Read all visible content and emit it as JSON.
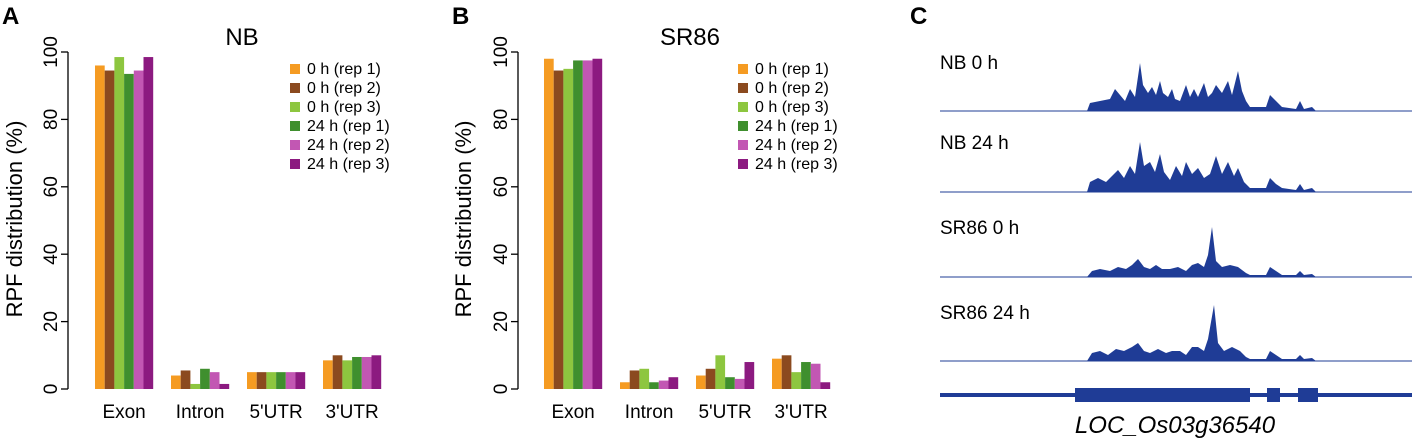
{
  "panels": [
    {
      "letter": "A"
    },
    {
      "letter": "B"
    },
    {
      "letter": "C"
    }
  ],
  "colors": {
    "0 h (rep 1)": "#F59B22",
    "0 h (rep 2)": "#8B4A1F",
    "0 h (rep 3)": "#8DC63F",
    "24 h (rep 1)": "#3F8F2E",
    "24 h (rep 2)": "#C257B3",
    "24 h (rep 3)": "#8C1A80",
    "track": "#1F3C96"
  },
  "chart_data": [
    {
      "type": "bar",
      "title": "NB",
      "ylabel": "RPF distribution (%)",
      "xlabel": "",
      "ylim": [
        0,
        100
      ],
      "yticks": [
        0,
        20,
        40,
        60,
        80,
        100
      ],
      "legend_position": "top-right",
      "categories": [
        "Exon",
        "Intron",
        "5'UTR",
        "3'UTR"
      ],
      "series": [
        {
          "name": "0 h (rep 1)",
          "values": [
            96,
            4,
            5,
            8.5
          ]
        },
        {
          "name": "0 h (rep 2)",
          "values": [
            94.5,
            5.5,
            5,
            10
          ]
        },
        {
          "name": "0 h (rep 3)",
          "values": [
            98.5,
            1.5,
            5,
            8.5
          ]
        },
        {
          "name": "24 h (rep 1)",
          "values": [
            93.5,
            6,
            5,
            9.5
          ]
        },
        {
          "name": "24 h (rep 2)",
          "values": [
            94.5,
            5,
            5,
            9.5
          ]
        },
        {
          "name": "24 h (rep 3)",
          "values": [
            98.5,
            1.5,
            5,
            10
          ]
        }
      ]
    },
    {
      "type": "bar",
      "title": "SR86",
      "ylabel": "RPF distribution (%)",
      "xlabel": "",
      "ylim": [
        0,
        100
      ],
      "yticks": [
        0,
        20,
        40,
        60,
        80,
        100
      ],
      "legend_position": "top-right",
      "categories": [
        "Exon",
        "Intron",
        "5'UTR",
        "3'UTR"
      ],
      "series": [
        {
          "name": "0 h (rep 1)",
          "values": [
            98,
            2,
            4,
            9
          ]
        },
        {
          "name": "0 h (rep 2)",
          "values": [
            94.5,
            5.5,
            6,
            10
          ]
        },
        {
          "name": "0 h (rep 3)",
          "values": [
            95,
            6,
            10,
            5
          ]
        },
        {
          "name": "24 h (rep 1)",
          "values": [
            97.5,
            2,
            3.5,
            8
          ]
        },
        {
          "name": "24 h (rep 2)",
          "values": [
            97.5,
            2.5,
            3,
            7.5
          ]
        },
        {
          "name": "24 h (rep 3)",
          "values": [
            98,
            3.5,
            8,
            2
          ]
        }
      ]
    },
    {
      "type": "area",
      "tracks": [
        {
          "label": "NB 0 h"
        },
        {
          "label": "NB 24 h"
        },
        {
          "label": "SR86 0 h"
        },
        {
          "label": "SR86 24 h"
        }
      ],
      "gene": "LOC_Os03g36540"
    }
  ]
}
